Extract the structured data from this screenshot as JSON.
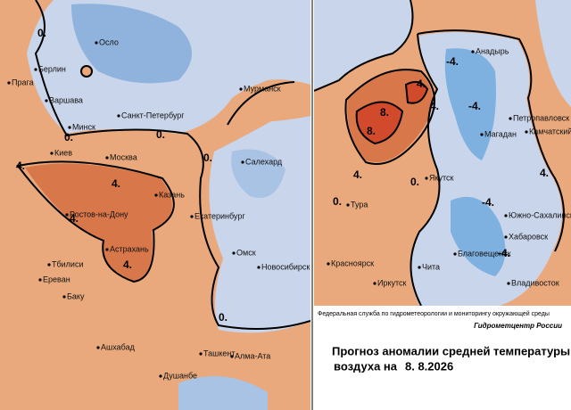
{
  "left_map": {
    "cities": [
      "Осло",
      "Берлин",
      "Прага",
      "Варшава",
      "Мурманск",
      "Санкт-Петербург",
      "Минск",
      "Киев",
      "Москва",
      "Салехард",
      "Казань",
      "Ростов-на-Дону",
      "Екатеринбург",
      "Астрахань",
      "Тбилиси",
      "Ереван",
      "Омск",
      "Новосибирск",
      "Баку",
      "Ашхабад",
      "Ташкент",
      "Алма-Ата",
      "Душанбе"
    ],
    "contour_labels": [
      "0.",
      "0.",
      "0.",
      "0.",
      "0.",
      "4.",
      "4.",
      "4.",
      "4."
    ]
  },
  "right_map": {
    "cities": [
      "Анадырь",
      "Петропавловск",
      "Магадан",
      "Камчатский",
      "Якутск",
      "Тура",
      "Южно-Сахалинск",
      "Хабаровск",
      "Благовещенск",
      "Владивосток",
      "Красноярск",
      "Чита",
      "Иркутск"
    ],
    "contour_labels": [
      "4.",
      "8.",
      "8.",
      "4.",
      "4.",
      "0.",
      "0.",
      "-4.",
      "-4.",
      "-4.",
      "-4.",
      "4."
    ]
  },
  "footer": {
    "agency": "Федеральная служба по гидрометеорологии и мониторингу окружающей среды",
    "center": "Гидрометцентр России",
    "title_line1": "Прогноз аномалии средней температуры",
    "title_line2": "воздуха на",
    "date": "8. 8.2026"
  }
}
